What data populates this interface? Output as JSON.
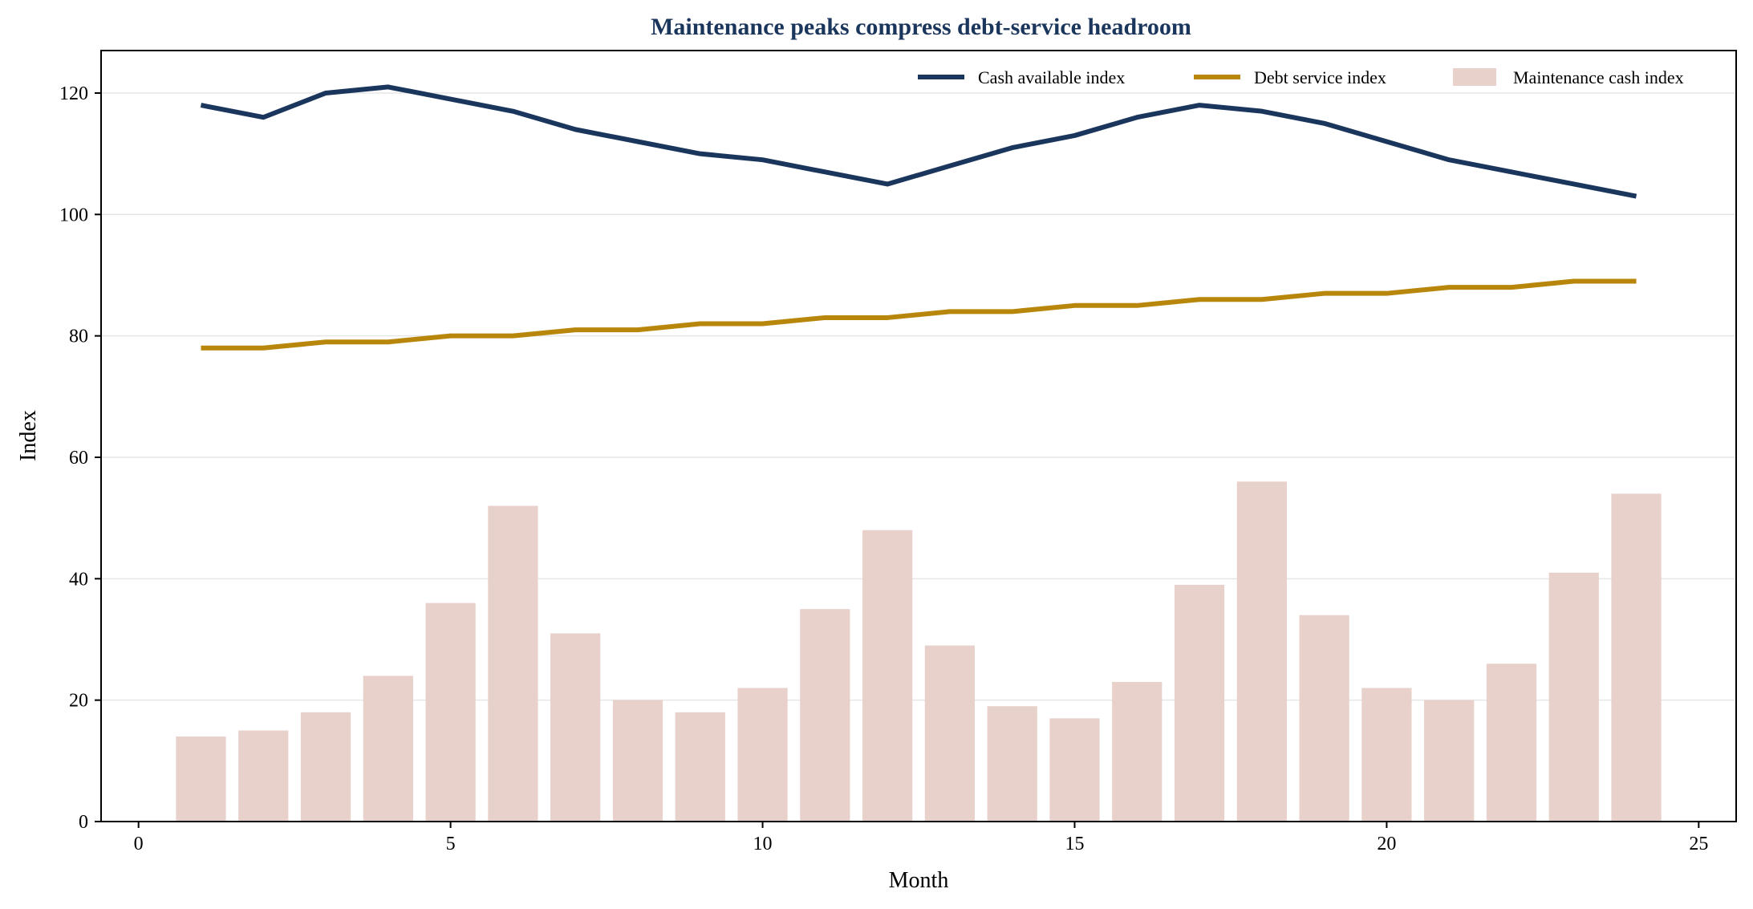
{
  "chart_data": {
    "type": "bar+line",
    "title": "Maintenance peaks compress debt-service headroom",
    "xlabel": "Month",
    "ylabel": "Index",
    "xlim": [
      -0.6,
      25.6
    ],
    "ylim": [
      0,
      127
    ],
    "xticks": [
      0,
      5,
      10,
      15,
      20,
      25
    ],
    "yticks": [
      0,
      20,
      40,
      60,
      80,
      100,
      120
    ],
    "grid": "horizontal",
    "legend_position": "top-right",
    "x": [
      1,
      2,
      3,
      4,
      5,
      6,
      7,
      8,
      9,
      10,
      11,
      12,
      13,
      14,
      15,
      16,
      17,
      18,
      19,
      20,
      21,
      22,
      23,
      24
    ],
    "series": [
      {
        "name": "Cash available index",
        "kind": "line",
        "color": "#1b365d",
        "values": [
          118,
          116,
          120,
          121,
          119,
          117,
          114,
          112,
          110,
          109,
          107,
          105,
          108,
          111,
          113,
          116,
          118,
          117,
          115,
          112,
          109,
          107,
          105,
          103
        ]
      },
      {
        "name": "Debt service index",
        "kind": "line",
        "color": "#b8860b",
        "values": [
          78,
          78,
          79,
          79,
          80,
          80,
          81,
          81,
          82,
          82,
          83,
          83,
          84,
          84,
          85,
          85,
          86,
          86,
          87,
          87,
          88,
          88,
          89,
          89
        ]
      },
      {
        "name": "Maintenance cash index",
        "kind": "bar",
        "color": "#e8d0cb",
        "values": [
          14,
          15,
          18,
          24,
          36,
          52,
          31,
          20,
          18,
          22,
          35,
          48,
          29,
          19,
          17,
          23,
          39,
          56,
          34,
          22,
          20,
          26,
          41,
          54
        ]
      }
    ],
    "colors": {
      "title": "#1b365d",
      "axis": "#000000",
      "grid": "#e6e6e6"
    }
  }
}
